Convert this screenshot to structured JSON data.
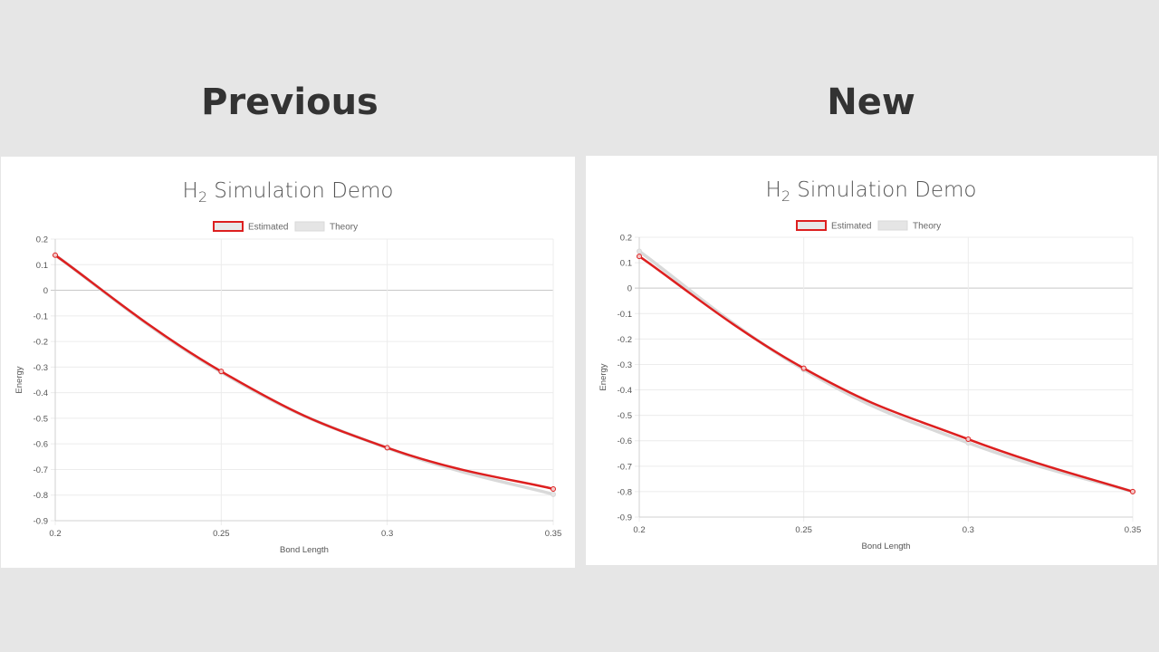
{
  "headings": {
    "left": "Previous",
    "right": "New"
  },
  "colors": {
    "estimated": "#dd1f1f",
    "theory": "#d9d9d9",
    "grid": "#ececec",
    "zero": "#c8c8c8"
  },
  "chart_data": [
    {
      "type": "line",
      "title_main": "H",
      "title_sub": "2",
      "title_rest": " Simulation Demo",
      "xlabel": "Bond Length",
      "ylabel": "Energy",
      "legend_position": "top",
      "x": [
        0.2,
        0.25,
        0.3,
        0.35
      ],
      "x_tick_labels": [
        "0.2",
        "0.25",
        "0.3",
        "0.35"
      ],
      "ylim": [
        -0.9,
        0.2
      ],
      "y_ticks": [
        0.2,
        0.1,
        0,
        -0.1,
        -0.2,
        -0.3,
        -0.4,
        -0.5,
        -0.6,
        -0.7,
        -0.8,
        -0.9
      ],
      "y_tick_labels": [
        "0.2",
        "0.1",
        "0",
        "-0.1",
        "-0.2",
        "-0.3",
        "-0.4",
        "-0.5",
        "-0.6",
        "-0.7",
        "-0.8",
        "-0.9"
      ],
      "grid": true,
      "series": [
        {
          "name": "Estimated",
          "values": [
            0.137,
            -0.317,
            -0.615,
            -0.776
          ]
        },
        {
          "name": "Theory",
          "values": [
            0.137,
            -0.32,
            -0.616,
            -0.797
          ]
        }
      ]
    },
    {
      "type": "line",
      "title_main": "H",
      "title_sub": "2",
      "title_rest": " Simulation Demo",
      "xlabel": "Bond Length",
      "ylabel": "Energy",
      "legend_position": "top",
      "x": [
        0.2,
        0.25,
        0.3,
        0.35
      ],
      "x_tick_labels": [
        "0.2",
        "0.25",
        "0.3",
        "0.35"
      ],
      "ylim": [
        -0.9,
        0.2
      ],
      "y_ticks": [
        0.2,
        0.1,
        0,
        -0.1,
        -0.2,
        -0.3,
        -0.4,
        -0.5,
        -0.6,
        -0.7,
        -0.8,
        -0.9
      ],
      "y_tick_labels": [
        "0.2",
        "0.1",
        "0",
        "-0.1",
        "-0.2",
        "-0.3",
        "-0.4",
        "-0.5",
        "-0.6",
        "-0.7",
        "-0.8",
        "-0.9"
      ],
      "grid": true,
      "series": [
        {
          "name": "Estimated",
          "values": [
            0.125,
            -0.315,
            -0.594,
            -0.8
          ]
        },
        {
          "name": "Theory",
          "values": [
            0.145,
            -0.32,
            -0.608,
            -0.8
          ]
        }
      ]
    }
  ]
}
